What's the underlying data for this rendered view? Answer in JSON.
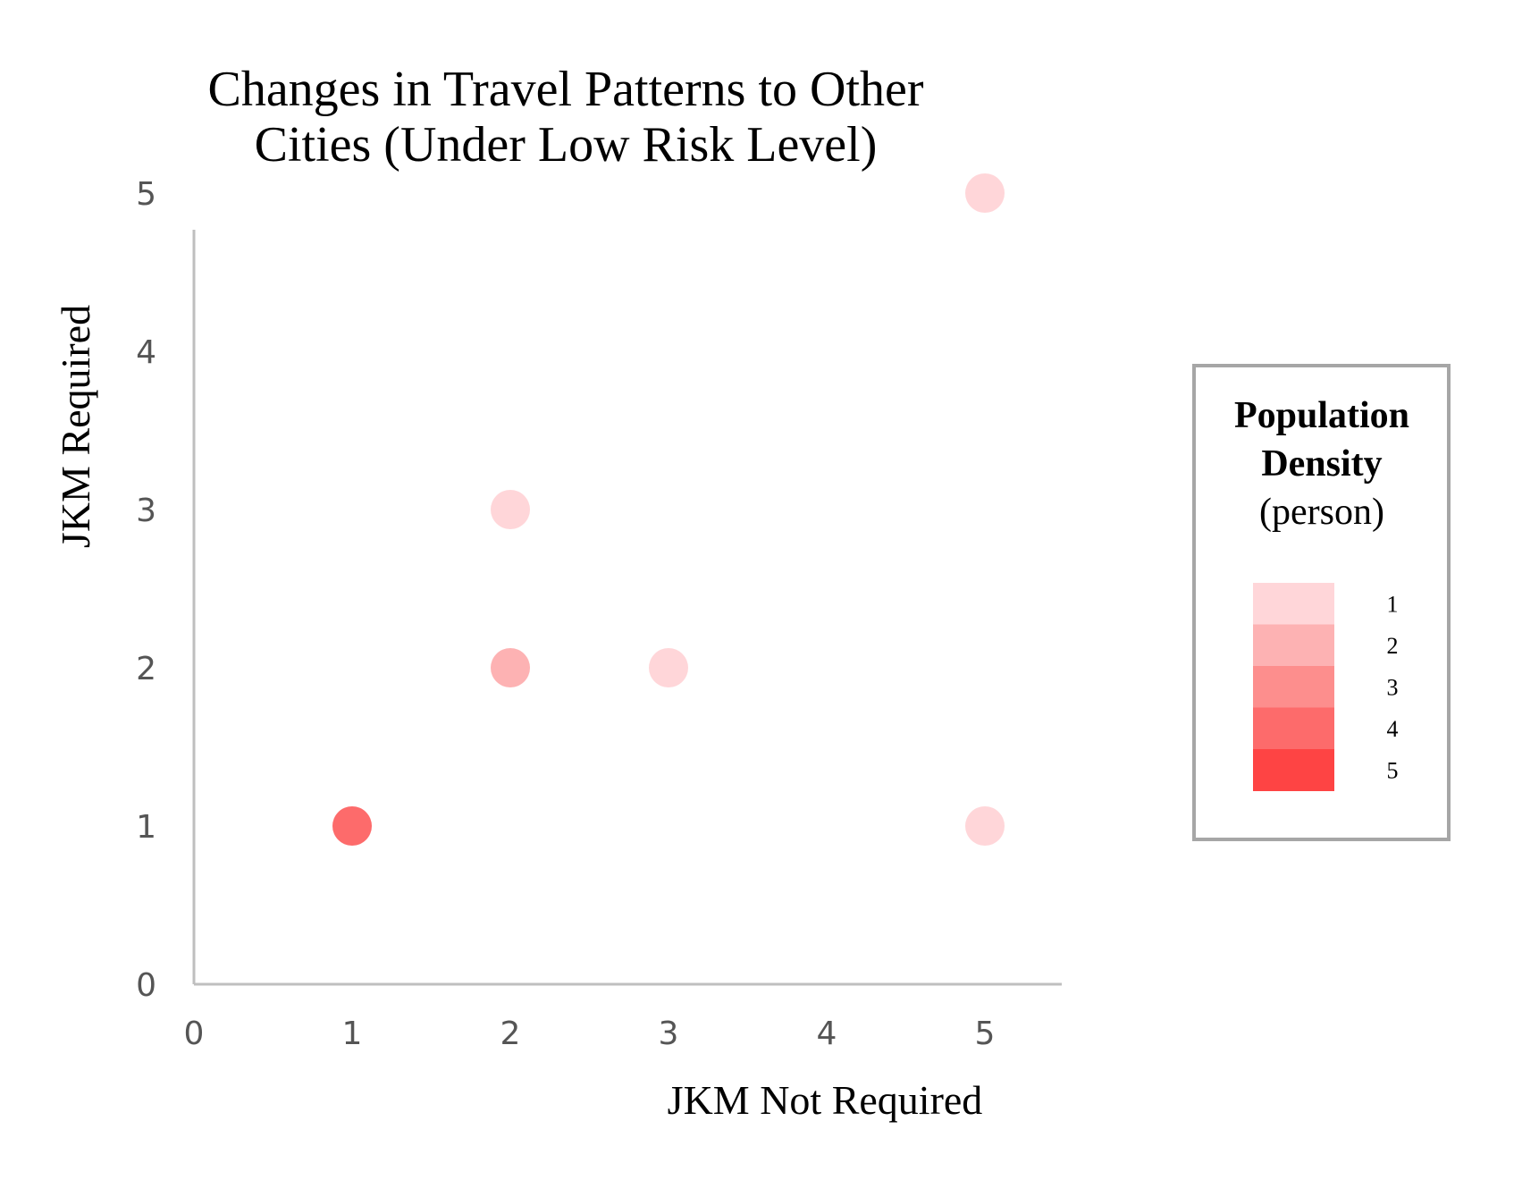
{
  "chart_data": {
    "type": "scatter",
    "title_lines": [
      "Changes in Travel Patterns to Other",
      "Cities (Under Low Risk Level)"
    ],
    "xlabel": "JKM Not Required",
    "ylabel": "JKM Required",
    "xlim": [
      0,
      5.5
    ],
    "ylim": [
      0,
      5.5
    ],
    "xticks": [
      "0",
      "1",
      "2",
      "3",
      "4",
      "5"
    ],
    "yticks": [
      "0",
      "1",
      "2",
      "3",
      "4",
      "5"
    ],
    "grid": false,
    "points": [
      {
        "x": 5,
        "y": 5,
        "density": 1
      },
      {
        "x": 2,
        "y": 3,
        "density": 1
      },
      {
        "x": 2,
        "y": 2,
        "density": 2
      },
      {
        "x": 3,
        "y": 2,
        "density": 1
      },
      {
        "x": 1,
        "y": 1,
        "density": 4
      },
      {
        "x": 5,
        "y": 1,
        "density": 1
      }
    ],
    "legend": {
      "title_lines": [
        "Population",
        "Density"
      ],
      "unit": "(person)",
      "placement": "right",
      "levels": [
        {
          "label": "1",
          "color": "#FFD6D9"
        },
        {
          "label": "2",
          "color": "#FDB2B3"
        },
        {
          "label": "3",
          "color": "#FD8E8D"
        },
        {
          "label": "4",
          "color": "#FD6B6B"
        },
        {
          "label": "5",
          "color": "#FE4444"
        }
      ]
    },
    "colors": {
      "axis": "#BFBFBF",
      "legend_border": "#A6A6A6"
    }
  }
}
